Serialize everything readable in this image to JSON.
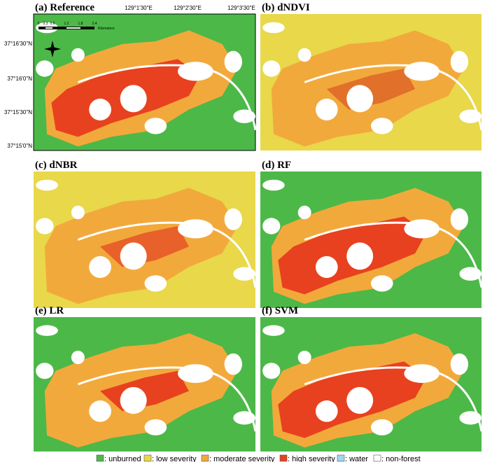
{
  "panels": [
    {
      "label": "(a) Reference"
    },
    {
      "label": "(b) dNDVI"
    },
    {
      "label": "(c) dNBR"
    },
    {
      "label": "(d) RF"
    },
    {
      "label": "(e) LR"
    },
    {
      "label": "(f) SVM"
    }
  ],
  "latitude_labels": [
    "37°16'30\"N",
    "37°16'0\"N",
    "37°15'30\"N",
    "37°15'0\"N"
  ],
  "longitude_labels": [
    "129°1'30\"E",
    "129°2'30\"E",
    "129°3'30\"E"
  ],
  "scale_bar": {
    "ticks": [
      "0",
      "0.3",
      "0.6",
      "1.2",
      "1.8",
      "2.4"
    ],
    "unit": "Kilometers"
  },
  "legend": [
    {
      "label": ": unburned",
      "color": "#4cb848"
    },
    {
      "label": ": low severity",
      "color": "#e8d84a"
    },
    {
      "label": ": moderate severity",
      "color": "#f2a93b"
    },
    {
      "label": ": high severity",
      "color": "#e8411f"
    },
    {
      "label": ": water",
      "color": "#9fd6f0"
    },
    {
      "label": ": non-forest",
      "color": "#ffffff"
    }
  ]
}
